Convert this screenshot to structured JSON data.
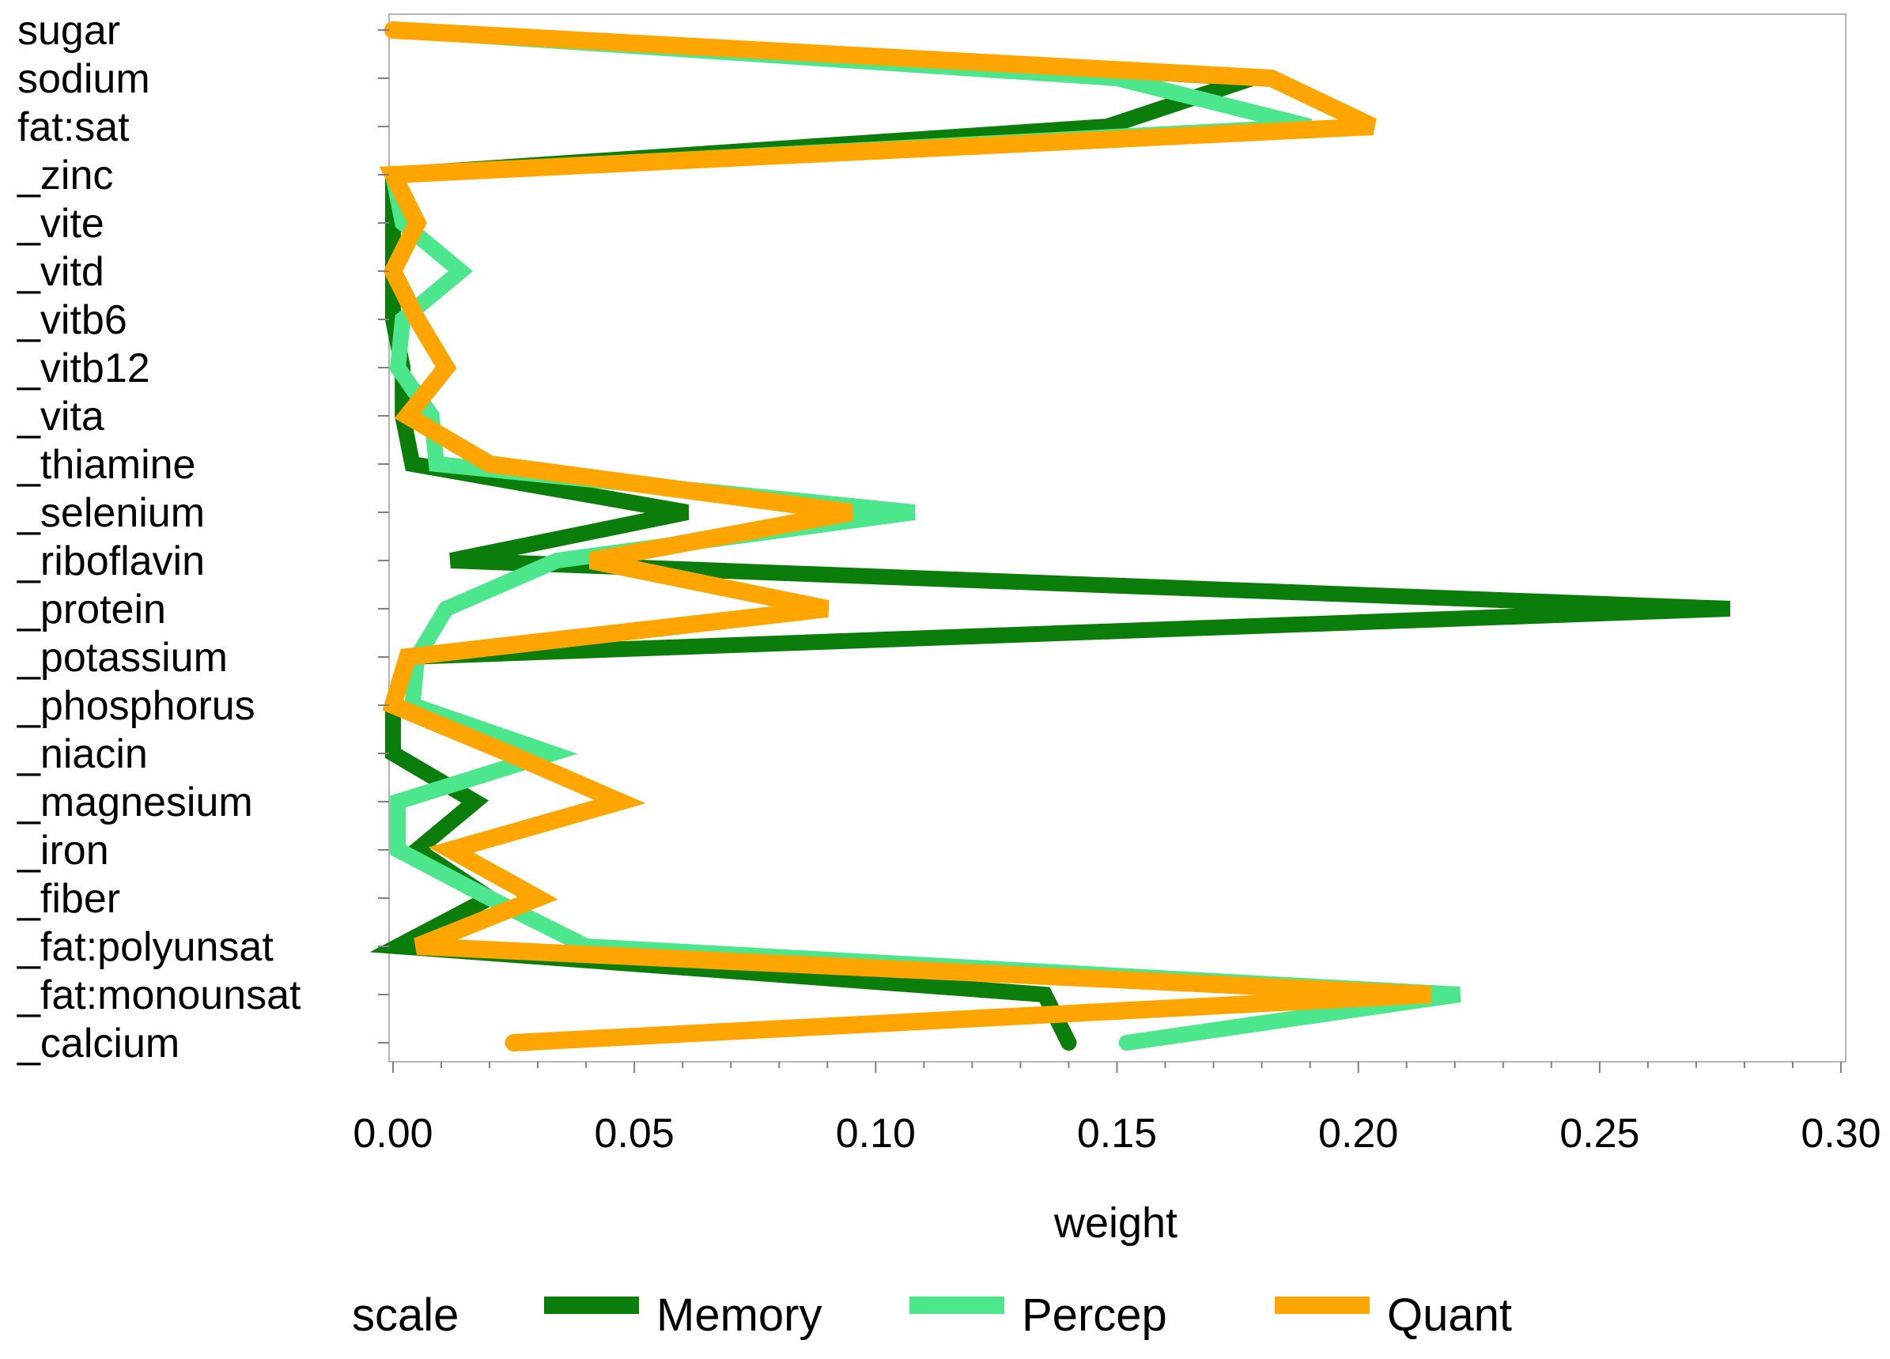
{
  "chart_data": {
    "type": "line",
    "orientation": "horizontal",
    "xlabel": "weight",
    "ylabel": "",
    "xlim": [
      0,
      0.3
    ],
    "xticks": [
      "0.00",
      "0.05",
      "0.10",
      "0.15",
      "0.20",
      "0.25",
      "0.30"
    ],
    "categories": [
      "sugar",
      "sodium",
      "fat:sat",
      "_zinc",
      "_vite",
      "_vitd",
      "_vitb6",
      "_vitb12",
      "_vita",
      "_thiamine",
      "_selenium",
      "_riboflavin",
      "_protein",
      "_potassium",
      "_phosphorus",
      "_niacin",
      "_magnesium",
      "_iron",
      "_fiber",
      "_fat:polyunsat",
      "_fat:monounsat",
      "_calcium"
    ],
    "legend": {
      "title": "scale",
      "placement": "bottom"
    },
    "grid": false,
    "series": [
      {
        "name": "Memory",
        "color": "#0a7d0a",
        "values": [
          0.0,
          0.178,
          0.148,
          0.0,
          0.0,
          0.0,
          0.0,
          0.002,
          0.002,
          0.004,
          0.061,
          0.012,
          0.277,
          0.003,
          0.0,
          0.0,
          0.017,
          0.005,
          0.02,
          0.001,
          0.135,
          0.14
        ]
      },
      {
        "name": "Percep",
        "color": "#4ce68c",
        "values": [
          0.0,
          0.15,
          0.19,
          0.0,
          0.002,
          0.014,
          0.002,
          0.001,
          0.008,
          0.009,
          0.108,
          0.034,
          0.011,
          0.005,
          0.004,
          0.033,
          0.001,
          0.001,
          0.02,
          0.04,
          0.221,
          0.152
        ]
      },
      {
        "name": "Quant",
        "color": "#ffa500",
        "values": [
          0.0,
          0.182,
          0.203,
          0.0,
          0.005,
          0.0,
          0.005,
          0.011,
          0.003,
          0.02,
          0.095,
          0.041,
          0.09,
          0.003,
          0.0,
          0.024,
          0.047,
          0.012,
          0.03,
          0.005,
          0.215,
          0.025
        ]
      }
    ]
  }
}
